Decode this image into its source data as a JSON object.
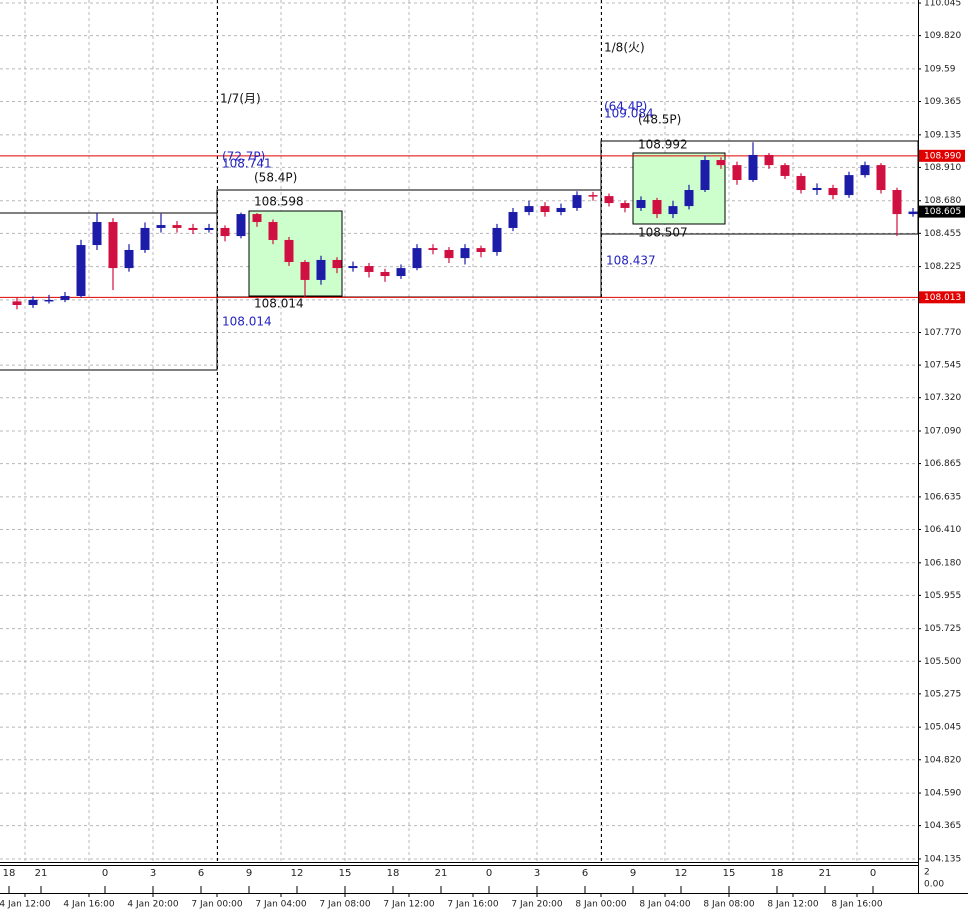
{
  "chart_data": {
    "type": "candlestick",
    "x": [
      "4 Jan 11:00",
      "4 Jan 12:00",
      "4 Jan 13:00",
      "4 Jan 14:00",
      "4 Jan 15:00",
      "4 Jan 16:00",
      "4 Jan 17:00",
      "4 Jan 18:00",
      "4 Jan 19:00",
      "4 Jan 20:00",
      "4 Jan 21:00",
      "4 Jan 22:00",
      "4 Jan 23:00",
      "7 Jan 00:00",
      "7 Jan 01:00",
      "7 Jan 02:00",
      "7 Jan 03:00",
      "7 Jan 04:00",
      "7 Jan 05:00",
      "7 Jan 06:00",
      "7 Jan 07:00",
      "7 Jan 08:00",
      "7 Jan 09:00",
      "7 Jan 10:00",
      "7 Jan 11:00",
      "7 Jan 12:00",
      "7 Jan 13:00",
      "7 Jan 14:00",
      "7 Jan 15:00",
      "7 Jan 16:00",
      "7 Jan 17:00",
      "7 Jan 18:00",
      "7 Jan 19:00",
      "7 Jan 20:00",
      "7 Jan 21:00",
      "7 Jan 22:00",
      "7 Jan 23:00",
      "8 Jan 00:00",
      "8 Jan 01:00",
      "8 Jan 02:00",
      "8 Jan 03:00",
      "8 Jan 04:00",
      "8 Jan 05:00",
      "8 Jan 06:00",
      "8 Jan 07:00",
      "8 Jan 08:00",
      "8 Jan 09:00",
      "8 Jan 10:00",
      "8 Jan 11:00",
      "8 Jan 12:00",
      "8 Jan 13:00",
      "8 Jan 14:00",
      "8 Jan 15:00",
      "8 Jan 16:00",
      "8 Jan 17:00",
      "8 Jan 18:00",
      "8 Jan 19:00"
    ],
    "open": [
      107.985,
      107.96,
      107.995,
      107.995,
      108.022,
      108.374,
      108.533,
      108.215,
      108.34,
      108.492,
      108.512,
      108.492,
      108.478,
      108.492,
      108.436,
      108.588,
      108.533,
      108.409,
      108.257,
      108.133,
      108.271,
      108.215,
      108.229,
      108.188,
      108.16,
      108.215,
      108.353,
      108.34,
      108.284,
      108.353,
      108.326,
      108.492,
      108.602,
      108.643,
      108.602,
      108.63,
      108.719,
      108.712,
      108.664,
      108.63,
      108.685,
      108.588,
      108.643,
      108.754,
      108.961,
      108.926,
      108.823,
      108.996,
      108.926,
      108.851,
      108.754,
      108.768,
      108.719,
      108.857,
      108.926,
      108.754,
      108.588
    ],
    "high": [
      108.01,
      108.02,
      108.03,
      108.05,
      108.41,
      108.595,
      108.56,
      108.38,
      108.53,
      108.59,
      108.54,
      108.52,
      108.52,
      108.51,
      108.598,
      108.595,
      108.55,
      108.43,
      108.27,
      108.3,
      108.29,
      108.26,
      108.25,
      108.21,
      108.24,
      108.38,
      108.38,
      108.36,
      108.38,
      108.37,
      108.52,
      108.63,
      108.68,
      108.67,
      108.66,
      108.745,
      108.741,
      108.73,
      108.68,
      108.71,
      108.7,
      108.68,
      108.79,
      108.992,
      108.98,
      108.95,
      109.084,
      109.01,
      108.94,
      108.87,
      108.8,
      108.79,
      108.88,
      108.95,
      108.94,
      108.77,
      108.63
    ],
    "low": [
      107.93,
      107.94,
      107.97,
      107.98,
      108.01,
      108.34,
      108.063,
      108.19,
      108.32,
      108.46,
      108.46,
      108.45,
      108.46,
      108.4,
      108.42,
      108.5,
      108.38,
      108.23,
      108.014,
      108.1,
      108.18,
      108.19,
      108.15,
      108.12,
      108.14,
      108.2,
      108.31,
      108.25,
      108.24,
      108.29,
      108.3,
      108.47,
      108.58,
      108.57,
      108.58,
      108.61,
      108.68,
      108.64,
      108.6,
      108.61,
      108.56,
      108.56,
      108.62,
      108.74,
      108.9,
      108.79,
      108.81,
      108.9,
      108.83,
      108.73,
      108.72,
      108.69,
      108.7,
      108.84,
      108.73,
      108.437,
      108.57
    ],
    "close": [
      107.96,
      107.995,
      107.995,
      108.022,
      108.374,
      108.533,
      108.215,
      108.34,
      108.492,
      108.512,
      108.492,
      108.478,
      108.492,
      108.436,
      108.588,
      108.533,
      108.409,
      108.257,
      108.133,
      108.271,
      108.215,
      108.229,
      108.188,
      108.16,
      108.215,
      108.353,
      108.34,
      108.284,
      108.353,
      108.326,
      108.492,
      108.602,
      108.643,
      108.602,
      108.63,
      108.719,
      108.712,
      108.664,
      108.63,
      108.685,
      108.588,
      108.643,
      108.754,
      108.961,
      108.926,
      108.823,
      108.996,
      108.926,
      108.851,
      108.754,
      108.768,
      108.719,
      108.857,
      108.926,
      108.754,
      108.588,
      108.605
    ],
    "hour_labels": [
      "18",
      null,
      "21",
      null,
      null,
      null,
      "0",
      null,
      null,
      "3",
      null,
      null,
      "6",
      null,
      null,
      "9",
      null,
      null,
      "12",
      null,
      null,
      "15",
      null,
      null,
      "18",
      null,
      null,
      "21",
      null,
      null,
      "0",
      null,
      null,
      "3",
      null,
      null,
      "6",
      null,
      null,
      "9",
      null,
      null,
      "12",
      null,
      null,
      "15",
      null,
      null,
      "18",
      null,
      null,
      "21",
      null,
      null,
      "0",
      null,
      null,
      null
    ],
    "up_color": "#1c1ca8",
    "down_color": "#d01040",
    "ylim": [
      104.114,
      110.066
    ],
    "yticks": [
      110.045,
      {
        "value": 109.82,
        "label": "109.820"
      },
      109.59,
      109.365,
      109.135,
      {
        "value": 108.91,
        "label": "108.910"
      },
      {
        "value": 108.68,
        "label": "108.680"
      },
      108.455,
      108.225,
      107.995,
      {
        "value": 107.77,
        "label": "107.770"
      },
      107.545,
      {
        "value": 107.32,
        "label": "107.320"
      },
      {
        "value": 107.09,
        "label": "107.090"
      },
      106.865,
      106.635,
      {
        "value": 106.41,
        "label": "106.410"
      },
      {
        "value": 106.18,
        "label": "106.180"
      },
      105.955,
      105.725,
      {
        "value": 105.5,
        "label": "105.500"
      },
      105.275,
      105.045,
      {
        "value": 104.82,
        "label": "104.820"
      },
      {
        "value": 104.59,
        "label": "104.590"
      },
      104.365,
      104.135
    ],
    "xticks": [
      "4 Jan 12:00",
      "4 Jan 16:00",
      "4 Jan 20:00",
      "7 Jan 00:00",
      "7 Jan 04:00",
      "7 Jan 08:00",
      "7 Jan 12:00",
      "7 Jan 16:00",
      "7 Jan 20:00",
      "8 Jan 00:00",
      "8 Jan 04:00",
      "8 Jan 08:00",
      "8 Jan 12:00",
      "8 Jan 16:00"
    ],
    "grid": true,
    "hlines": [
      {
        "value": 108.99,
        "label": "108.990",
        "color": "#e00000"
      },
      {
        "value": 108.013,
        "label": "108.013",
        "color": "#e00000"
      }
    ],
    "current_price": 108.605,
    "sub_ylim": [
      0,
      2
    ],
    "sub_yticks": [
      2,
      {
        "value": 0,
        "label": "0.00"
      }
    ],
    "annotations": [
      "1/7(月)",
      "1/8(火)",
      "(72.7P)",
      "108.741",
      "(58.4P)",
      "108.598",
      "108.014",
      "108.014",
      "(64.4P)",
      "109.084",
      "(48.5P)",
      "108.992",
      "108.507",
      "108.437"
    ]
  }
}
